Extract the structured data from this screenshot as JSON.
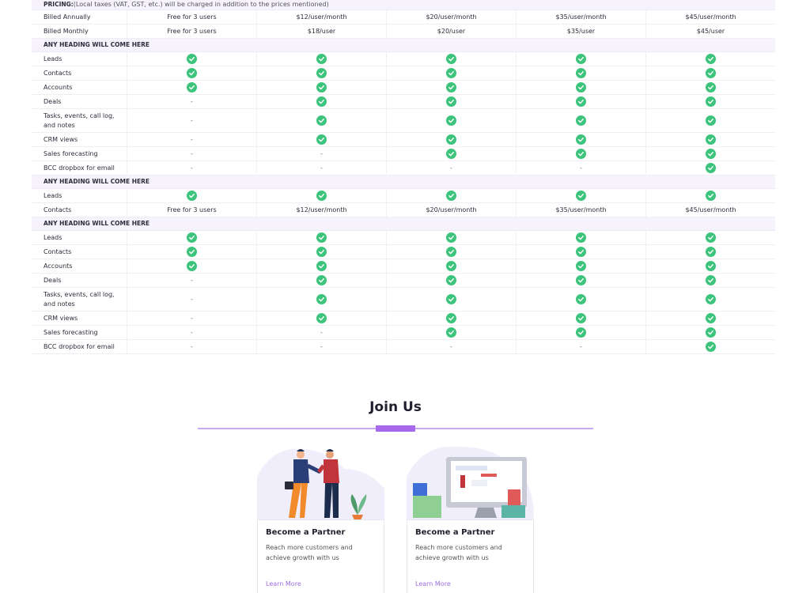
{
  "pricing": {
    "label": "PRICING:",
    "note": "(Local taxes (VAT, GST, etc.) will be charged in addition to the prices mentioned)",
    "rows": [
      {
        "label": "Billed Annually",
        "values": [
          "Free for 3 users",
          "$12/user/month",
          "$20/user/month",
          "$35/user/month",
          "$45/user/month"
        ]
      },
      {
        "label": "Billed Monthly",
        "values": [
          "Free for 3 users",
          "$18/user",
          "$20/user",
          "$35/user",
          "$45/user"
        ]
      }
    ]
  },
  "sections": [
    {
      "heading": "ANY HEADING WILL COME HERE",
      "rows": [
        {
          "label": "Leads",
          "values": [
            "check",
            "check",
            "check",
            "check",
            "check"
          ]
        },
        {
          "label": "Contacts",
          "values": [
            "check",
            "check",
            "check",
            "check",
            "check"
          ]
        },
        {
          "label": "Accounts",
          "values": [
            "check",
            "check",
            "check",
            "check",
            "check"
          ]
        },
        {
          "label": "Deals",
          "values": [
            "-",
            "check",
            "check",
            "check",
            "check"
          ]
        },
        {
          "label": "Tasks, events, call log, and notes",
          "values": [
            "-",
            "check",
            "check",
            "check",
            "check"
          ],
          "tall": true
        },
        {
          "label": "CRM views",
          "values": [
            "-",
            "check",
            "check",
            "check",
            "check"
          ]
        },
        {
          "label": "Sales forecasting",
          "values": [
            "-",
            "-",
            "check",
            "check",
            "check"
          ]
        },
        {
          "label": "BCC dropbox for email",
          "values": [
            "-",
            "-",
            "-",
            "-",
            "check"
          ]
        }
      ]
    },
    {
      "heading": "ANY HEADING WILL COME HERE",
      "rows": [
        {
          "label": "Leads",
          "values": [
            "check",
            "check",
            "check",
            "check",
            "check"
          ]
        },
        {
          "label": "Contacts",
          "values": [
            "Free for 3 users",
            "$12/user/month",
            "$20/user/month",
            "$35/user/month",
            "$45/user/month"
          ]
        }
      ]
    },
    {
      "heading": "ANY HEADING WILL COME HERE",
      "rows": [
        {
          "label": "Leads",
          "values": [
            "check",
            "check",
            "check",
            "check",
            "check"
          ]
        },
        {
          "label": "Contacts",
          "values": [
            "check",
            "check",
            "check",
            "check",
            "check"
          ]
        },
        {
          "label": "Accounts",
          "values": [
            "check",
            "check",
            "check",
            "check",
            "check"
          ]
        },
        {
          "label": "Deals",
          "values": [
            "-",
            "check",
            "check",
            "check",
            "check"
          ]
        },
        {
          "label": "Tasks, events, call log, and notes",
          "values": [
            "-",
            "check",
            "check",
            "check",
            "check"
          ],
          "tall": true
        },
        {
          "label": "CRM views",
          "values": [
            "-",
            "check",
            "check",
            "check",
            "check"
          ]
        },
        {
          "label": "Sales forecasting",
          "values": [
            "-",
            "-",
            "check",
            "check",
            "check"
          ]
        },
        {
          "label": "BCC dropbox for email",
          "values": [
            "-",
            "-",
            "-",
            "-",
            "check"
          ]
        }
      ]
    }
  ],
  "join": {
    "title": "Join Us",
    "cards": [
      {
        "title": "Become a Partner",
        "desc": "Reach more customers and achieve growth with us",
        "link": "Learn More",
        "illustration": "handshake-illustration"
      },
      {
        "title": "Become a Partner",
        "desc": "Reach more customers and achieve growth with us",
        "link": "Learn More",
        "illustration": "monitor-shopping-illustration"
      }
    ]
  },
  "colors": {
    "check": "#3cc47c",
    "accent": "#a868ee",
    "link": "#9b6ee0",
    "heading_bg": "#f7f3fd"
  }
}
